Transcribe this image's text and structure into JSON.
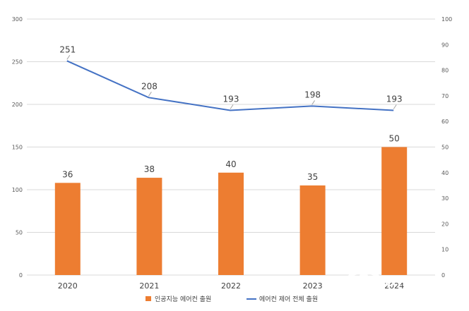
{
  "chart_data": {
    "type": "bar",
    "categories": [
      "2020",
      "2021",
      "2022",
      "2023",
      "2024"
    ],
    "series": [
      {
        "name": "인공지능 에어컨 출원",
        "type": "bar",
        "axis": "right",
        "values": [
          36,
          38,
          40,
          35,
          50
        ],
        "color": "#ED7D31"
      },
      {
        "name": "에어컨 제어 전체 출원",
        "type": "line",
        "axis": "left",
        "values": [
          251,
          208,
          193,
          198,
          193
        ],
        "color": "#4472C4"
      }
    ],
    "left_axis": {
      "ylim": [
        0,
        300
      ],
      "ticks": [
        0,
        50,
        100,
        150,
        200,
        250,
        300
      ]
    },
    "right_axis": {
      "ylim": [
        0,
        100
      ],
      "ticks": [
        0,
        10,
        20,
        30,
        40,
        50,
        60,
        70,
        80,
        90,
        100
      ]
    },
    "grid": true,
    "legend_position": "bottom"
  },
  "watermark": {
    "logo": "OTO방송",
    "tagline": "종합미디어 인터넷방송"
  },
  "colors": {
    "grid": "#d9d9d9",
    "tick_text": "#595959"
  }
}
